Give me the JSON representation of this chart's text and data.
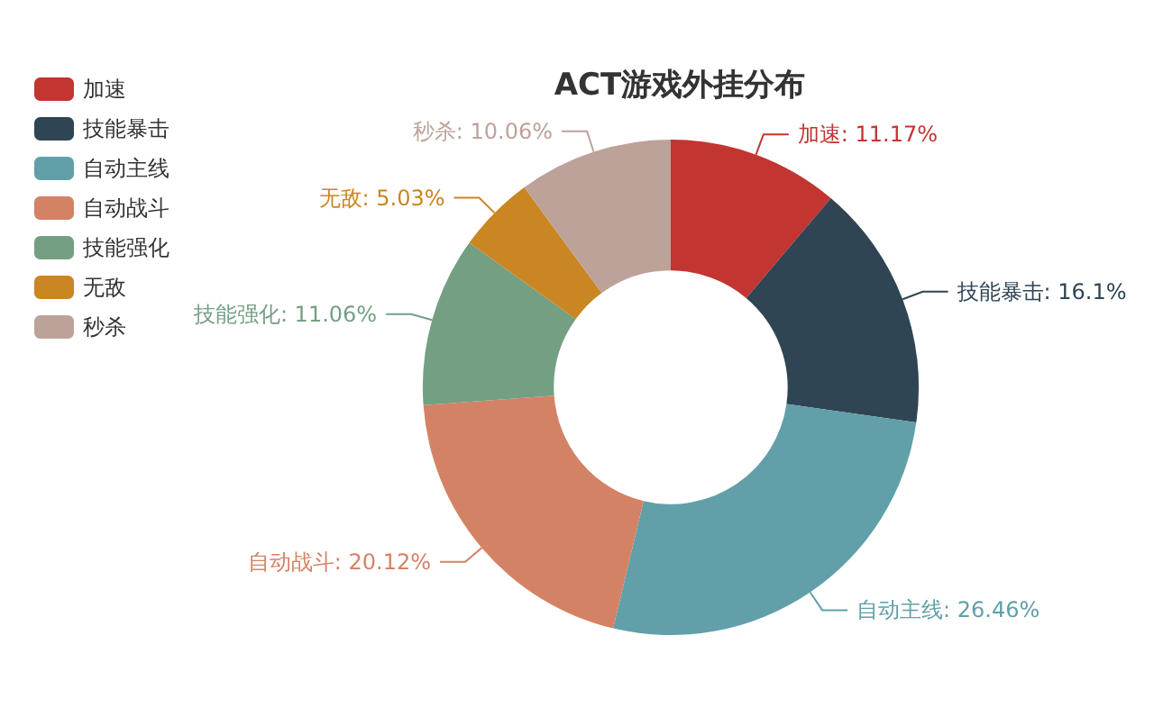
{
  "chart_data": {
    "type": "donut",
    "title": "ACT游戏外挂分布",
    "categories": [
      "加速",
      "技能暴击",
      "自动主线",
      "自动战斗",
      "技能强化",
      "无敌",
      "秒杀"
    ],
    "values": [
      11.17,
      16.1,
      26.46,
      20.12,
      11.06,
      5.03,
      10.06
    ],
    "colors": [
      "#c23531",
      "#2f4554",
      "#61a0a8",
      "#d48265",
      "#749f83",
      "#ca8622",
      "#bda29a"
    ],
    "value_labels": [
      "加速: 11.17%",
      "技能暴击: 16.1%",
      "自动主线: 26.46%",
      "自动战斗: 20.12%",
      "技能强化: 11.06%",
      "无敌: 5.03%",
      "秒杀: 10.06%"
    ],
    "legend": "top left"
  }
}
